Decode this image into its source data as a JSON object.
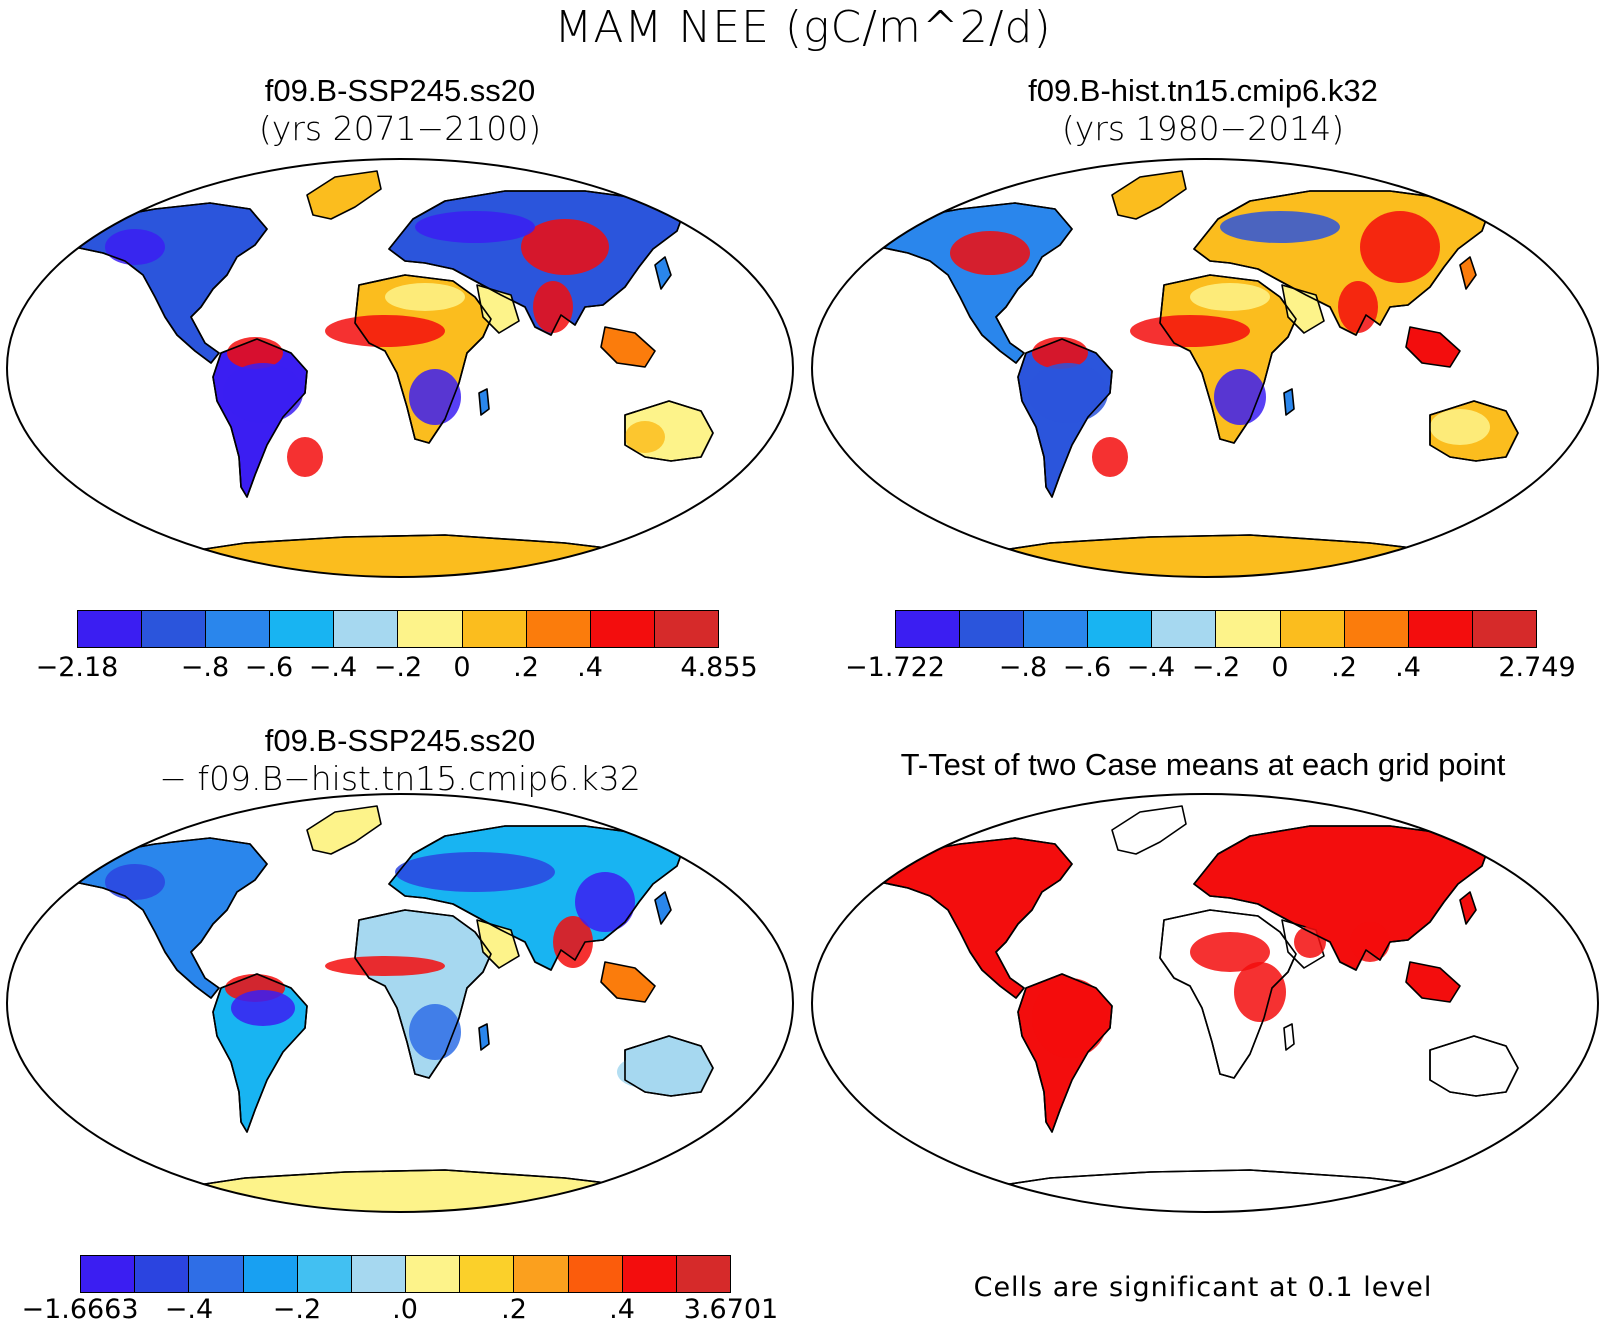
{
  "title": "MAM NEE (gC/m^2/d)",
  "colors": {
    "levels": [
      "#3b1ef2",
      "#2b55dc",
      "#2a86ec",
      "#18b4f2",
      "#a6d8f0",
      "#fdf38a",
      "#fbbd1e",
      "#fb7c0c",
      "#f30d0d",
      "#d62a2a"
    ],
    "levels12": [
      "#3b1ef2",
      "#2b44e0",
      "#2f6ee6",
      "#18a0f2",
      "#42c0f2",
      "#a6d8f0",
      "#fdf38a",
      "#fbd02a",
      "#fba01e",
      "#fb5c0c",
      "#f30d0d",
      "#d62a2a"
    ],
    "sig": "#f30d0d"
  },
  "panels": [
    {
      "id": "case1",
      "title_line1": "f09.B-SSP245.ss20",
      "title_line2": "(yrs 2071−2100)",
      "colorbar_ticks": [
        "−2.18",
        "−.8",
        "−.6",
        "−.4",
        "−.2",
        "0",
        ".2",
        ".4",
        "4.855"
      ]
    },
    {
      "id": "case2",
      "title_line1": "f09.B-hist.tn15.cmip6.k32",
      "title_line2": "(yrs 1980−2014)",
      "colorbar_ticks": [
        "−1.722",
        "−.8",
        "−.6",
        "−.4",
        "−.2",
        "0",
        ".2",
        ".4",
        "2.749"
      ]
    },
    {
      "id": "diff",
      "title_line1": "f09.B-SSP245.ss20",
      "title_line2": "− f09.B−hist.tn15.cmip6.k32",
      "colorbar_ticks": [
        "−1.6663",
        "−.4",
        "−.2",
        ".0",
        ".2",
        ".4",
        "3.6701"
      ]
    },
    {
      "id": "ttest",
      "title_line1": "T-Test of two Case means at each grid point",
      "note": "Cells are significant at 0.1 level"
    }
  ]
}
